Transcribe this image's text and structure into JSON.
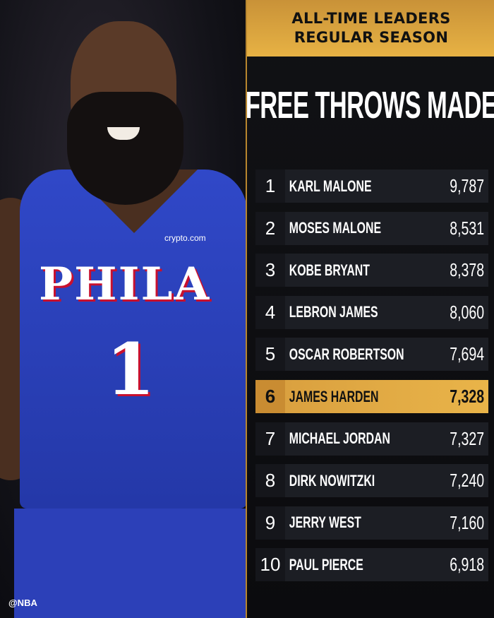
{
  "header": {
    "line1": "ALL-TIME LEADERS",
    "line2": "REGULAR SEASON"
  },
  "title": "FREE THROWS MADE",
  "photo": {
    "jersey_text": "PHILA",
    "jersey_number": "1",
    "sponsor": "crypto.com"
  },
  "watermark": "@NBA",
  "colors": {
    "accent": "#e3ad44",
    "highlight_row": "#e3ad44",
    "panel": "#111215",
    "jersey": "#2d44c0"
  },
  "highlight_rank": 6,
  "leaders": [
    {
      "rank": "1",
      "name": "KARL MALONE",
      "value": "9,787"
    },
    {
      "rank": "2",
      "name": "MOSES MALONE",
      "value": "8,531"
    },
    {
      "rank": "3",
      "name": "KOBE BRYANT",
      "value": "8,378"
    },
    {
      "rank": "4",
      "name": "LEBRON JAMES",
      "value": "8,060"
    },
    {
      "rank": "5",
      "name": "OSCAR ROBERTSON",
      "value": "7,694"
    },
    {
      "rank": "6",
      "name": "JAMES HARDEN",
      "value": "7,328"
    },
    {
      "rank": "7",
      "name": "MICHAEL JORDAN",
      "value": "7,327"
    },
    {
      "rank": "8",
      "name": "DIRK NOWITZKI",
      "value": "7,240"
    },
    {
      "rank": "9",
      "name": "JERRY WEST",
      "value": "7,160"
    },
    {
      "rank": "10",
      "name": "PAUL PIERCE",
      "value": "6,918"
    }
  ]
}
